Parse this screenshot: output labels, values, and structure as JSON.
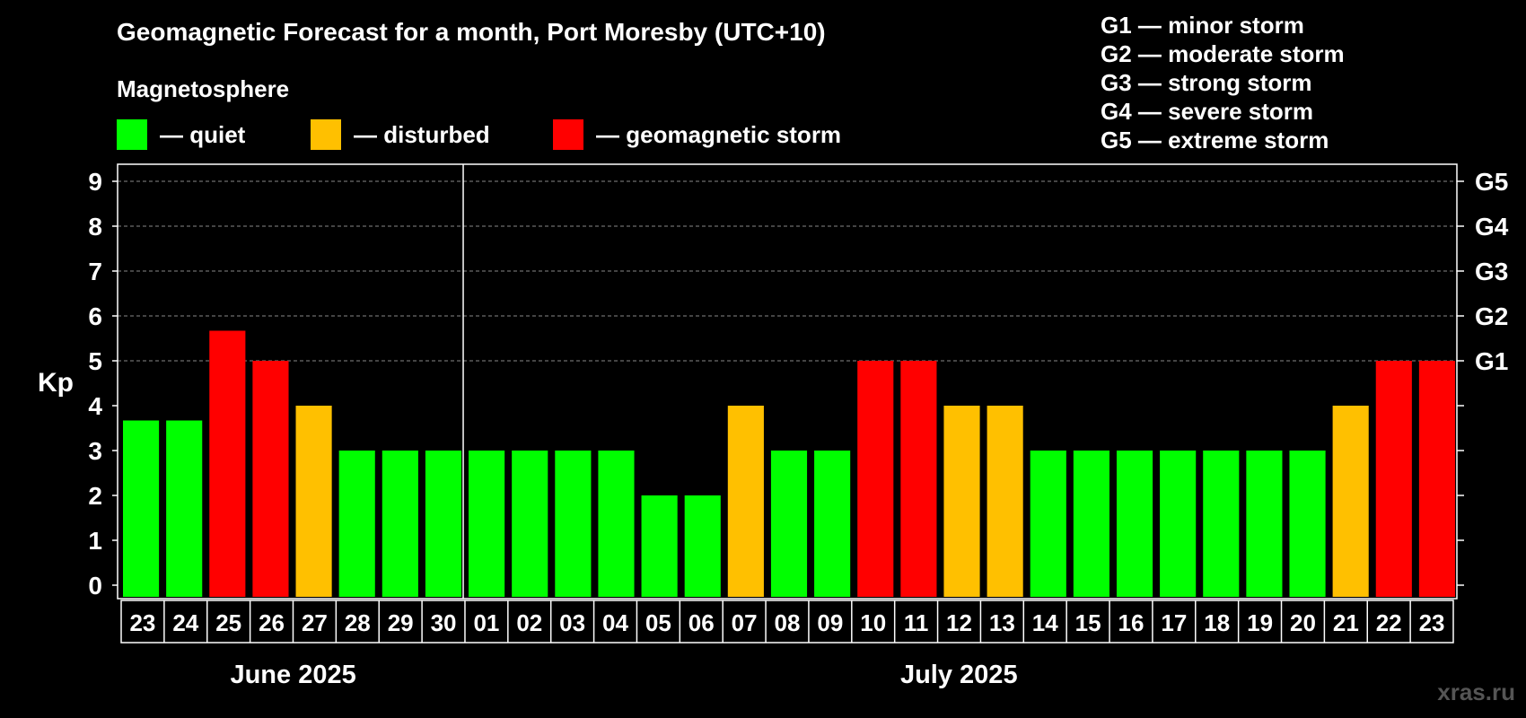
{
  "title": "Geomagnetic Forecast for a month, Port Moresby (UTC+10)",
  "legend": {
    "heading": "Magnetosphere",
    "items": [
      {
        "label": "— quiet",
        "color": "#00ff00"
      },
      {
        "label": "— disturbed",
        "color": "#ffc000"
      },
      {
        "label": "— geomagnetic storm",
        "color": "#ff0000"
      }
    ]
  },
  "storm_scale": [
    "G1 — minor storm",
    "G2 — moderate storm",
    "G3 — strong storm",
    "G4 — severe storm",
    "G5 — extreme storm"
  ],
  "watermark": "xras.ru",
  "chart_data": {
    "type": "bar",
    "title": "Geomagnetic Forecast for a month, Port Moresby (UTC+10)",
    "ylabel": "Kp",
    "ylim": [
      0,
      9
    ],
    "yticks": [
      "0",
      "1",
      "2",
      "3",
      "4",
      "5",
      "6",
      "7",
      "8",
      "9"
    ],
    "right_axis": [
      {
        "value": 5,
        "label": "G1"
      },
      {
        "value": 6,
        "label": "G2"
      },
      {
        "value": 7,
        "label": "G3"
      },
      {
        "value": 8,
        "label": "G4"
      },
      {
        "value": 9,
        "label": "G5"
      }
    ],
    "categories": [
      "23",
      "24",
      "25",
      "26",
      "27",
      "28",
      "29",
      "30",
      "01",
      "02",
      "03",
      "04",
      "05",
      "06",
      "07",
      "08",
      "09",
      "10",
      "11",
      "12",
      "13",
      "14",
      "15",
      "16",
      "17",
      "18",
      "19",
      "20",
      "21",
      "22",
      "23"
    ],
    "values": [
      3.67,
      3.67,
      5.67,
      5,
      4,
      3,
      3,
      3,
      3,
      3,
      3,
      3,
      2,
      2,
      4,
      3,
      3,
      5,
      5,
      4,
      4,
      3,
      3,
      3,
      3,
      3,
      3,
      3,
      4,
      5,
      5
    ],
    "status": [
      "quiet",
      "quiet",
      "storm",
      "storm",
      "disturbed",
      "quiet",
      "quiet",
      "quiet",
      "quiet",
      "quiet",
      "quiet",
      "quiet",
      "quiet",
      "quiet",
      "disturbed",
      "quiet",
      "quiet",
      "storm",
      "storm",
      "disturbed",
      "disturbed",
      "quiet",
      "quiet",
      "quiet",
      "quiet",
      "quiet",
      "quiet",
      "quiet",
      "disturbed",
      "storm",
      "storm"
    ],
    "months": [
      {
        "label": "June 2025",
        "first_index": 0,
        "last_index": 7
      },
      {
        "label": "July 2025",
        "first_index": 8,
        "last_index": 30
      }
    ],
    "month_divider_after_index": 7,
    "grid": true
  }
}
